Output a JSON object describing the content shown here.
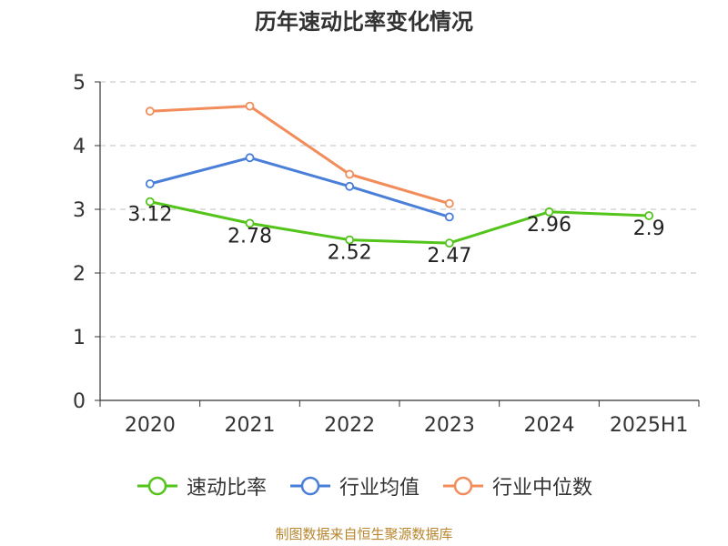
{
  "chart_data": {
    "type": "line",
    "title": "历年速动比率变化情况",
    "categories": [
      "2020",
      "2021",
      "2022",
      "2023",
      "2024",
      "2025H1"
    ],
    "ylim": [
      0,
      5
    ],
    "yticks": [
      0,
      1,
      2,
      3,
      4,
      5
    ],
    "grid": true,
    "legend_position": "bottom",
    "series": [
      {
        "name": "速动比率",
        "color": "#52c41a",
        "values": [
          3.12,
          2.78,
          2.52,
          2.47,
          2.96,
          2.9
        ],
        "data_labels": [
          "3.12",
          "2.78",
          "2.52",
          "2.47",
          "2.96",
          "2.9"
        ]
      },
      {
        "name": "行业均值",
        "color": "#4a7fd9",
        "values": [
          3.4,
          3.81,
          3.36,
          2.88,
          null,
          null
        ]
      },
      {
        "name": "行业中位数",
        "color": "#f28c5a",
        "values": [
          4.54,
          4.62,
          3.55,
          3.09,
          null,
          null
        ]
      }
    ]
  },
  "footer": {
    "source": "制图数据来自恒生聚源数据库"
  }
}
